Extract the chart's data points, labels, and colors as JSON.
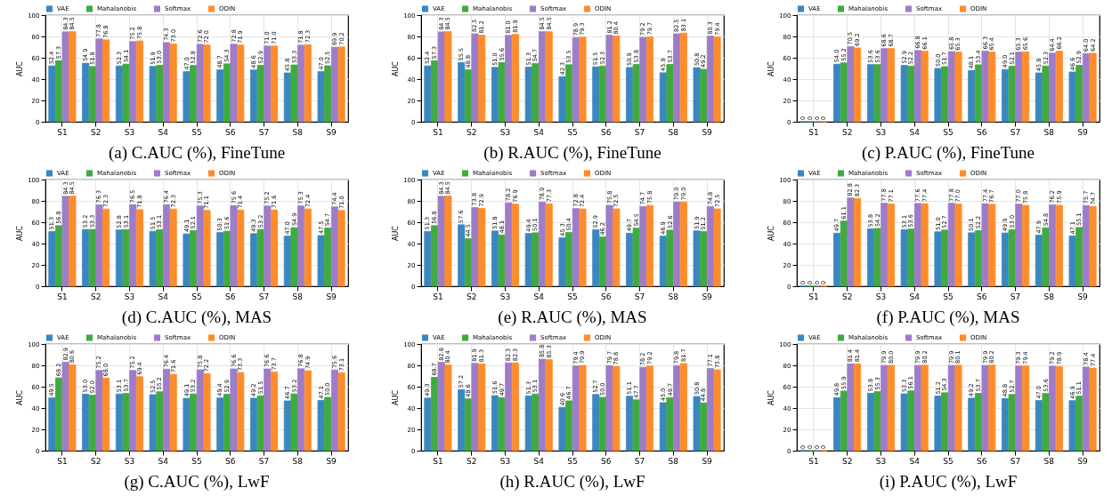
{
  "chart_data": [
    {
      "type": "bar",
      "title": "(a) C.AUC (%),  FineTune",
      "ylabel": "AUC",
      "categories": [
        "S1",
        "S2",
        "S3",
        "S4",
        "S5",
        "S6",
        "S7",
        "S8",
        "S9"
      ],
      "ylim": [
        0,
        100
      ],
      "yticks": [
        0,
        20,
        40,
        60,
        80,
        100
      ],
      "grid": true,
      "legend": "top",
      "series": [
        {
          "name": "VAE",
          "color": "#3a87c0",
          "values": [
            52.4,
            54.9,
            52.3,
            51.9,
            47.0,
            48.7,
            48.6,
            45.8,
            47.0
          ],
          "value_labels": [
            "52.4",
            "54.9",
            "52.3",
            "51.9",
            "47.0",
            "48.7",
            "48.6",
            "45.8",
            "47.0"
          ]
        },
        {
          "name": "Mahalanobis",
          "color": "#3fab3f",
          "values": [
            57.3,
            51.8,
            54.1,
            53.0,
            52.8,
            54.3,
            52.9,
            53.3,
            52.5
          ],
          "value_labels": [
            "57.3",
            "51.8",
            "54.1",
            "53.0",
            "52.8",
            "54.3",
            "52.9",
            "53.3",
            "52.5"
          ]
        },
        {
          "name": "Softmax",
          "color": "#9e7cc9",
          "values": [
            84.3,
            77.8,
            75.2,
            74.3,
            72.6,
            72.8,
            71.0,
            71.8,
            69.9
          ],
          "value_labels": [
            "84.3",
            "77.8",
            "75.2",
            "74.3",
            "72.6",
            "72.8",
            "71.0",
            "71.8",
            "69.9"
          ]
        },
        {
          "name": "ODIN",
          "color": "#ff8c2a",
          "values": [
            84.5,
            76.8,
            75.8,
            73.0,
            72.0,
            71.9,
            71.0,
            72.3,
            70.2
          ],
          "value_labels": [
            "84.5",
            "76.8",
            "75.8",
            "73.0",
            "72.0",
            "71.9",
            "71.0",
            "72.3",
            "70.2"
          ]
        }
      ]
    },
    {
      "type": "bar",
      "title": "(b) R.AUC (%),  FineTune",
      "ylabel": "AUC",
      "categories": [
        "S1",
        "S2",
        "S3",
        "S4",
        "S5",
        "S6",
        "S7",
        "S8",
        "S9"
      ],
      "ylim": [
        0,
        100
      ],
      "yticks": [
        0,
        20,
        40,
        60,
        80,
        100
      ],
      "grid": true,
      "legend": "top",
      "series": [
        {
          "name": "VAE",
          "color": "#3a87c0",
          "values": [
            52.4,
            55.5,
            51.0,
            51.3,
            42.3,
            51.5,
            50.9,
            45.9,
            50.8
          ],
          "value_labels": [
            "52.4",
            "55.5",
            "51.0",
            "51.3",
            "42.3",
            "51.5",
            "50.9",
            "45.9",
            "50.8"
          ]
        },
        {
          "name": "Mahalanobis",
          "color": "#3fab3f",
          "values": [
            57.3,
            48.8,
            55.6,
            54.7,
            53.5,
            52.3,
            53.8,
            53.7,
            49.2
          ],
          "value_labels": [
            "57.3",
            "48.8",
            "55.6",
            "54.7",
            "53.5",
            "52.3",
            "53.8",
            "53.7",
            "49.2"
          ]
        },
        {
          "name": "Softmax",
          "color": "#9e7cc9",
          "values": [
            84.3,
            82.5,
            81.0,
            84.5,
            78.9,
            81.2,
            79.2,
            82.5,
            80.3
          ],
          "value_labels": [
            "84.3",
            "82.5",
            "81.0",
            "84.5",
            "78.9",
            "81.2",
            "79.2",
            "82.5",
            "80.3"
          ]
        },
        {
          "name": "ODIN",
          "color": "#ff8c2a",
          "values": [
            84.5,
            81.2,
            81.9,
            84.5,
            79.3,
            80.4,
            79.7,
            83.1,
            79.4
          ],
          "value_labels": [
            "84.5",
            "81.2",
            "81.9",
            "84.5",
            "79.3",
            "80.4",
            "79.7",
            "83.1",
            "79.4"
          ]
        }
      ]
    },
    {
      "type": "bar",
      "title": "(c) P.AUC (%),  FineTune",
      "ylabel": "AUC",
      "categories": [
        "S1",
        "S2",
        "S3",
        "S4",
        "S5",
        "S6",
        "S7",
        "S8",
        "S9"
      ],
      "ylim": [
        0,
        100
      ],
      "yticks": [
        0,
        20,
        40,
        60,
        80,
        100
      ],
      "grid": true,
      "legend": "top",
      "series": [
        {
          "name": "VAE",
          "color": "#3a87c0",
          "values": [
            0,
            54.0,
            53.6,
            52.9,
            50.0,
            48.1,
            49.0,
            45.8,
            46.6
          ],
          "value_labels": [
            "0",
            "54.0",
            "53.6",
            "52.9",
            "50.0",
            "48.1",
            "49.0",
            "45.8",
            "46.6"
          ]
        },
        {
          "name": "Mahalanobis",
          "color": "#3fab3f",
          "values": [
            0,
            55.2,
            53.6,
            52.2,
            51.7,
            53.4,
            52.1,
            52.3,
            52.9
          ],
          "value_labels": [
            "0",
            "55.2",
            "53.6",
            "52.2",
            "51.7",
            "53.4",
            "52.1",
            "52.3",
            "52.9"
          ]
        },
        {
          "name": "Softmax",
          "color": "#9e7cc9",
          "values": [
            0,
            70.5,
            68.6,
            66.8,
            65.8,
            66.3,
            65.3,
            64.4,
            64.0
          ],
          "value_labels": [
            "0",
            "70.5",
            "68.6",
            "66.8",
            "65.8",
            "66.3",
            "65.3",
            "64.4",
            "64.0"
          ]
        },
        {
          "name": "ODIN",
          "color": "#ff8c2a",
          "values": [
            0,
            69.2,
            68.7,
            66.1,
            65.3,
            65.4,
            65.6,
            66.2,
            64.2
          ],
          "value_labels": [
            "0",
            "69.2",
            "68.7",
            "66.1",
            "65.3",
            "65.4",
            "65.6",
            "66.2",
            "64.2"
          ]
        }
      ]
    },
    {
      "type": "bar",
      "title": "(d) C.AUC (%),  MAS",
      "ylabel": "AUC",
      "categories": [
        "S1",
        "S2",
        "S3",
        "S4",
        "S5",
        "S6",
        "S7",
        "S8",
        "S9"
      ],
      "ylim": [
        0,
        100
      ],
      "yticks": [
        0,
        20,
        40,
        60,
        80,
        100
      ],
      "grid": true,
      "legend": "top",
      "series": [
        {
          "name": "VAE",
          "color": "#3a87c0",
          "values": [
            51.3,
            53.2,
            52.8,
            51.5,
            49.1,
            50.3,
            49.3,
            47.0,
            47.5
          ],
          "value_labels": [
            "51.3",
            "53.2",
            "52.8",
            "51.5",
            "49.1",
            "50.3",
            "49.3",
            "47.0",
            "47.5"
          ]
        },
        {
          "name": "Mahalanobis",
          "color": "#3fab3f",
          "values": [
            56.8,
            53.3,
            53.1,
            53.1,
            52.1,
            51.6,
            53.2,
            54.9,
            54.7
          ],
          "value_labels": [
            "56.8",
            "53.3",
            "53.1",
            "53.1",
            "52.1",
            "51.6",
            "53.2",
            "54.9",
            "54.7"
          ]
        },
        {
          "name": "Softmax",
          "color": "#9e7cc9",
          "values": [
            84.3,
            76.3,
            76.5,
            76.4,
            75.3,
            75.6,
            75.2,
            75.3,
            74.4
          ],
          "value_labels": [
            "84.3",
            "76.3",
            "76.5",
            "76.4",
            "75.3",
            "75.6",
            "75.2",
            "75.3",
            "74.4"
          ]
        },
        {
          "name": "ODIN",
          "color": "#ff8c2a",
          "values": [
            84.5,
            72.3,
            71.8,
            72.3,
            71.1,
            71.4,
            71.6,
            72.4,
            71.0
          ],
          "value_labels": [
            "84.5",
            "72.3",
            "71.8",
            "72.3",
            "71.1",
            "71.4",
            "71.6",
            "72.4",
            "71.0"
          ]
        }
      ]
    },
    {
      "type": "bar",
      "title": "(e) R.AUC (%),  MAS",
      "ylabel": "AUC",
      "categories": [
        "S1",
        "S2",
        "S3",
        "S4",
        "S5",
        "S6",
        "S7",
        "S8",
        "S9"
      ],
      "ylim": [
        0,
        100
      ],
      "yticks": [
        0,
        20,
        40,
        60,
        80,
        100
      ],
      "grid": true,
      "legend": "top",
      "series": [
        {
          "name": "VAE",
          "color": "#3a87c0",
          "values": [
            51.3,
            57.6,
            51.8,
            49.4,
            45.3,
            52.9,
            49.7,
            46.9,
            51.9
          ],
          "value_labels": [
            "51.3",
            "57.6",
            "51.8",
            "49.4",
            "45.3",
            "52.9",
            "49.7",
            "46.9",
            "51.9"
          ]
        },
        {
          "name": "Mahalanobis",
          "color": "#3fab3f",
          "values": [
            56.8,
            44.5,
            48.1,
            50.1,
            50.4,
            46.2,
            54.5,
            52.6,
            51.2
          ],
          "value_labels": [
            "56.8",
            "44.5",
            "48.1",
            "50.1",
            "50.4",
            "46.2",
            "54.5",
            "52.6",
            "51.2"
          ]
        },
        {
          "name": "Softmax",
          "color": "#9e7cc9",
          "values": [
            84.3,
            73.8,
            78.2,
            78.9,
            72.8,
            75.8,
            74.7,
            79.0,
            74.8
          ],
          "value_labels": [
            "84.3",
            "73.8",
            "78.2",
            "78.9",
            "72.8",
            "75.8",
            "74.7",
            "79.0",
            "74.8"
          ]
        },
        {
          "name": "ODIN",
          "color": "#ff8c2a",
          "values": [
            84.5,
            72.9,
            76.9,
            77.3,
            72.4,
            72.5,
            75.8,
            79.0,
            72.5
          ],
          "value_labels": [
            "84.5",
            "72.9",
            "76.9",
            "77.3",
            "72.4",
            "72.5",
            "75.8",
            "79.0",
            "72.5"
          ]
        }
      ]
    },
    {
      "type": "bar",
      "title": "(f) P.AUC (%),  MAS",
      "ylabel": "AUC",
      "categories": [
        "S1",
        "S2",
        "S3",
        "S4",
        "S5",
        "S6",
        "S7",
        "S8",
        "S9"
      ],
      "ylim": [
        0,
        100
      ],
      "yticks": [
        0,
        20,
        40,
        60,
        80,
        100
      ],
      "grid": true,
      "legend": "top",
      "series": [
        {
          "name": "VAE",
          "color": "#3a87c0",
          "values": [
            0,
            49.7,
            53.8,
            53.1,
            51.0,
            50.1,
            49.9,
            47.9,
            47.1
          ],
          "value_labels": [
            "0",
            "49.7",
            "53.8",
            "53.1",
            "51.0",
            "50.1",
            "49.9",
            "47.9",
            "47.1"
          ]
        },
        {
          "name": "Mahalanobis",
          "color": "#3fab3f",
          "values": [
            0,
            61.1,
            54.2,
            53.6,
            52.7,
            52.2,
            53.0,
            54.8,
            55.1
          ],
          "value_labels": [
            "0",
            "61.1",
            "54.2",
            "53.6",
            "52.7",
            "52.2",
            "53.0",
            "54.8",
            "55.1"
          ]
        },
        {
          "name": "Softmax",
          "color": "#9e7cc9",
          "values": [
            0,
            82.8,
            77.8,
            77.6,
            77.8,
            77.4,
            77.0,
            76.2,
            75.7
          ],
          "value_labels": [
            "0",
            "82.8",
            "77.8",
            "77.6",
            "77.8",
            "77.4",
            "77.0",
            "76.2",
            "75.7"
          ]
        },
        {
          "name": "ODIN",
          "color": "#ff8c2a",
          "values": [
            0,
            82.3,
            77.1,
            77.4,
            77.0,
            76.7,
            75.8,
            75.9,
            74.7
          ],
          "value_labels": [
            "0",
            "82.3",
            "77.1",
            "77.4",
            "77.0",
            "76.7",
            "75.8",
            "75.9",
            "74.7"
          ]
        }
      ]
    },
    {
      "type": "bar",
      "title": "(g) C.AUC (%),  LwF",
      "ylabel": "AUC",
      "categories": [
        "S1",
        "S2",
        "S3",
        "S4",
        "S5",
        "S6",
        "S7",
        "S8",
        "S9"
      ],
      "ylim": [
        0,
        100
      ],
      "yticks": [
        0,
        20,
        40,
        60,
        80,
        100
      ],
      "grid": true,
      "legend": "top",
      "series": [
        {
          "name": "VAE",
          "color": "#3a87c0",
          "values": [
            49.5,
            53.0,
            53.1,
            52.5,
            49.1,
            49.4,
            49.2,
            46.7,
            47.1
          ],
          "value_labels": [
            "49.5",
            "53.0",
            "53.1",
            "52.5",
            "49.1",
            "49.4",
            "49.2",
            "46.7",
            "47.1"
          ]
        },
        {
          "name": "Mahalanobis",
          "color": "#3fab3f",
          "values": [
            68.2,
            52.0,
            53.7,
            55.2,
            53.2,
            52.9,
            51.5,
            53.2,
            50.0
          ],
          "value_labels": [
            "68.2",
            "52.0",
            "53.7",
            "55.2",
            "53.2",
            "52.9",
            "51.5",
            "53.2",
            "50.0"
          ]
        },
        {
          "name": "Softmax",
          "color": "#9e7cc9",
          "values": [
            82.9,
            75.2,
            75.2,
            76.4,
            75.8,
            76.6,
            76.6,
            76.8,
            75.6
          ],
          "value_labels": [
            "82.9",
            "75.2",
            "75.2",
            "76.4",
            "75.8",
            "76.6",
            "76.6",
            "76.8",
            "75.6"
          ]
        },
        {
          "name": "ODIN",
          "color": "#ff8c2a",
          "values": [
            80.6,
            68.0,
            69.4,
            71.6,
            72.2,
            73.3,
            73.7,
            74.9,
            73.1
          ],
          "value_labels": [
            "80.6",
            "68.0",
            "69.4",
            "71.6",
            "72.2",
            "73.3",
            "73.7",
            "74.9",
            "73.1"
          ]
        }
      ]
    },
    {
      "type": "bar",
      "title": "(h) R.AUC (%),  LwF",
      "ylabel": "AUC",
      "categories": [
        "S1",
        "S2",
        "S3",
        "S4",
        "S5",
        "S6",
        "S7",
        "S8",
        "S9"
      ],
      "ylim": [
        0,
        100
      ],
      "yticks": [
        0,
        20,
        40,
        60,
        80,
        100
      ],
      "grid": true,
      "legend": "top",
      "series": [
        {
          "name": "VAE",
          "color": "#3a87c0",
          "values": [
            49.3,
            57.2,
            51.6,
            51.3,
            40.6,
            52.7,
            51.1,
            45.0,
            50.8
          ],
          "value_labels": [
            "49.3",
            "57.2",
            "51.6",
            "51.3",
            "40.6",
            "52.7",
            "51.1",
            "45.0",
            "50.8"
          ]
        },
        {
          "name": "Mahalanobis",
          "color": "#3fab3f",
          "values": [
            68.7,
            48.6,
            49.7,
            53.1,
            46.7,
            50.0,
            47.7,
            49.7,
            44.8
          ],
          "value_labels": [
            "68.7",
            "48.6",
            "49.7",
            "53.1",
            "46.7",
            "50.0",
            "47.7",
            "49.7",
            "44.8"
          ]
        },
        {
          "name": "Softmax",
          "color": "#9e7cc9",
          "values": [
            82.8,
            81.9,
            82.3,
            85.8,
            79.4,
            79.7,
            78.2,
            79.8,
            77.1
          ],
          "value_labels": [
            "82.8",
            "81.9",
            "82.3",
            "85.8",
            "79.4",
            "79.7",
            "78.2",
            "79.8",
            "77.1"
          ]
        },
        {
          "name": "ODIN",
          "color": "#ff8c2a",
          "values": [
            80.4,
            81.3,
            82.3,
            85.3,
            79.9,
            78.8,
            79.2,
            81.7,
            75.8
          ],
          "value_labels": [
            "80.4",
            "81.3",
            "82.3",
            "85.3",
            "79.9",
            "78.8",
            "79.2",
            "81.7",
            "75.8"
          ]
        }
      ]
    },
    {
      "type": "bar",
      "title": "(i) P.AUC (%),  LwF",
      "ylabel": "AUC",
      "categories": [
        "S1",
        "S2",
        "S3",
        "S4",
        "S5",
        "S6",
        "S7",
        "S8",
        "S9"
      ],
      "ylim": [
        0,
        100
      ],
      "yticks": [
        0,
        20,
        40,
        60,
        80,
        100
      ],
      "grid": true,
      "legend": "top",
      "series": [
        {
          "name": "VAE",
          "color": "#3a87c0",
          "values": [
            0,
            49.8,
            53.8,
            53.3,
            51.2,
            49.2,
            48.8,
            47.0,
            46.9
          ],
          "value_labels": [
            "0",
            "49.8",
            "53.8",
            "53.3",
            "51.2",
            "49.2",
            "48.8",
            "47.0",
            "46.9"
          ]
        },
        {
          "name": "Mahalanobis",
          "color": "#3fab3f",
          "values": [
            0,
            55.9,
            55.3,
            56.1,
            54.3,
            53.7,
            52.7,
            53.6,
            51.1
          ],
          "value_labels": [
            "0",
            "55.9",
            "55.3",
            "56.1",
            "54.3",
            "53.7",
            "52.7",
            "53.6",
            "51.1"
          ]
        },
        {
          "name": "Softmax",
          "color": "#9e7cc9",
          "values": [
            0,
            81.4,
            79.9,
            79.9,
            79.9,
            79.9,
            79.3,
            79.2,
            78.4
          ],
          "value_labels": [
            "0",
            "81.4",
            "79.9",
            "79.9",
            "79.9",
            "79.9",
            "79.3",
            "79.2",
            "78.4"
          ]
        },
        {
          "name": "ODIN",
          "color": "#ff8c2a",
          "values": [
            0,
            81.4,
            80.0,
            80.2,
            80.1,
            80.2,
            79.4,
            78.9,
            77.4
          ],
          "value_labels": [
            "0",
            "81.4",
            "80.0",
            "80.2",
            "80.1",
            "80.2",
            "79.4",
            "78.9",
            "77.4"
          ]
        }
      ]
    }
  ]
}
